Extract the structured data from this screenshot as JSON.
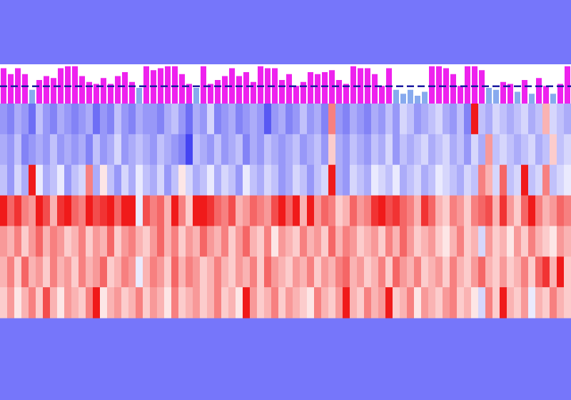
{
  "chart_data": {
    "type": "heatmap",
    "background": "#7676fa",
    "bar_color": "#ee22ee",
    "bar_low_color": "#88aaee",
    "threshold": 0.44,
    "threshold_color": "#1a1aa0",
    "ylim": [
      0,
      1
    ],
    "bars": [
      0.9,
      0.75,
      0.9,
      0.75,
      0.35,
      0.6,
      0.7,
      0.65,
      0.9,
      0.95,
      0.95,
      0.7,
      0.55,
      0.5,
      0.65,
      0.5,
      0.7,
      0.8,
      0.55,
      0.4,
      0.95,
      0.85,
      0.9,
      0.95,
      0.95,
      0.75,
      0.5,
      0.4,
      0.95,
      0.5,
      0.6,
      0.7,
      0.9,
      0.7,
      0.8,
      0.55,
      0.95,
      0.9,
      0.9,
      0.6,
      0.75,
      0.45,
      0.55,
      0.8,
      0.75,
      0.8,
      0.85,
      0.6,
      0.5,
      0.95,
      0.9,
      0.9,
      0.75,
      0.45,
      0.9,
      0.35,
      0.25,
      0.35,
      0.2,
      0.3,
      0.95,
      0.95,
      0.9,
      0.75,
      0.45,
      0.95,
      0.95,
      0.85,
      0.4,
      0.35,
      0.55,
      0.5,
      0.3,
      0.6,
      0.25,
      0.65,
      0.45,
      0.25,
      0.5,
      0.95
    ],
    "zlim": [
      -1,
      1
    ],
    "low_color": [
      48,
      48,
      240
    ],
    "mid_color": [
      255,
      255,
      255
    ],
    "high_color": [
      238,
      0,
      0
    ],
    "rows": [
      [
        -0.5,
        -0.6,
        -0.4,
        -0.5,
        -0.7,
        -0.3,
        -0.5,
        -0.6,
        -0.4,
        -0.5,
        -0.6,
        -0.5,
        -0.4,
        -0.7,
        -0.5,
        -0.6,
        -0.3,
        -0.5,
        -0.6,
        -0.4,
        -0.5,
        -0.5,
        -0.6,
        -0.4,
        -0.3,
        -0.5,
        -0.7,
        -0.4,
        -0.5,
        -0.2,
        -0.6,
        -0.5,
        -0.4,
        -0.6,
        -0.5,
        -0.4,
        -0.5,
        -0.8,
        -0.5,
        -0.4,
        -0.6,
        -0.5,
        -0.3,
        -0.5,
        -0.4,
        -0.6,
        0.5,
        -0.5,
        -0.6,
        -0.4,
        -0.5,
        -0.6,
        -0.4,
        -0.5,
        -0.3,
        -0.5,
        -0.2,
        -0.3,
        -0.5,
        -0.4,
        -0.3,
        -0.2,
        -0.4,
        -0.5,
        -0.3,
        -0.6,
        0.9,
        -0.3,
        -0.4,
        -0.2,
        -0.3,
        -0.4,
        -0.3,
        -0.2,
        -0.4,
        -0.3,
        0.3,
        -0.2,
        -0.3,
        -0.4
      ],
      [
        -0.4,
        -0.5,
        -0.3,
        -0.6,
        -0.5,
        -0.4,
        -0.5,
        -0.3,
        -0.5,
        -0.4,
        -0.5,
        -0.4,
        -0.6,
        -0.3,
        -0.5,
        -0.4,
        -0.2,
        -0.5,
        -0.4,
        -0.3,
        -0.4,
        -0.5,
        -0.3,
        -0.4,
        -0.5,
        -0.6,
        -0.9,
        -0.3,
        -0.4,
        -0.5,
        -0.3,
        -0.5,
        -0.4,
        -0.3,
        -0.6,
        -0.4,
        -0.5,
        -0.3,
        -0.4,
        -0.5,
        -0.4,
        -0.3,
        -0.5,
        -0.4,
        -0.3,
        -0.5,
        0.2,
        -0.4,
        -0.5,
        -0.3,
        -0.4,
        -0.5,
        -0.3,
        -0.4,
        -0.2,
        -0.5,
        -0.3,
        -0.4,
        -0.3,
        -0.2,
        -0.4,
        -0.3,
        -0.2,
        -0.4,
        -0.3,
        -0.5,
        -0.2,
        -0.4,
        0.4,
        -0.3,
        -0.2,
        -0.3,
        -0.4,
        -0.3,
        -0.2,
        -0.4,
        -0.3,
        0.2,
        -0.3,
        -0.2
      ],
      [
        -0.3,
        -0.5,
        -0.2,
        -0.4,
        0.9,
        -0.1,
        -0.4,
        -0.3,
        -0.1,
        -0.5,
        -0.3,
        -0.2,
        0.5,
        -0.4,
        0.1,
        -0.3,
        -0.5,
        -0.2,
        -0.4,
        -0.1,
        -0.3,
        -0.4,
        -0.2,
        -0.5,
        -0.3,
        0.1,
        -0.2,
        -0.4,
        -0.3,
        -0.1,
        -0.4,
        -0.2,
        -0.3,
        -0.5,
        -0.1,
        -0.3,
        -0.4,
        -0.2,
        -0.3,
        -0.5,
        -0.4,
        -0.2,
        -0.3,
        -0.5,
        -0.3,
        -0.2,
        0.9,
        -0.4,
        -0.5,
        -0.2,
        -0.3,
        -0.4,
        -0.1,
        -0.2,
        -0.3,
        -0.1,
        -0.4,
        -0.3,
        -0.2,
        -0.4,
        -0.3,
        -0.1,
        -0.2,
        -0.3,
        -0.4,
        -0.2,
        -0.3,
        0.5,
        0.3,
        -0.2,
        0.6,
        -0.3,
        -0.2,
        0.9,
        -0.3,
        -0.2,
        0.5,
        -0.3,
        -0.2,
        -0.1
      ],
      [
        0.9,
        0.6,
        0.8,
        0.5,
        0.4,
        0.9,
        0.7,
        0.3,
        0.8,
        0.9,
        0.6,
        0.5,
        0.9,
        0.7,
        0.8,
        0.9,
        0.6,
        0.9,
        0.9,
        -0.1,
        0.7,
        0.5,
        0.6,
        0.3,
        0.9,
        0.5,
        0.2,
        0.9,
        0.9,
        0.8,
        0.6,
        0.5,
        0.7,
        0.3,
        0.4,
        0.6,
        0.5,
        0.4,
        0.7,
        0.9,
        0.6,
        0.9,
        0.3,
        0.9,
        0.4,
        0.6,
        0.5,
        0.2,
        0.3,
        0.6,
        0.4,
        0.5,
        0.8,
        0.9,
        0.7,
        0.8,
        0.6,
        0.5,
        0.3,
        0.8,
        0.6,
        0.3,
        0.2,
        0.5,
        0.4,
        0.2,
        0.5,
        0.6,
        0.7,
        0.3,
        0.8,
        0.4,
        0.2,
        0.6,
        0.9,
        0.5,
        0.3,
        0.4,
        0.6,
        0.5
      ],
      [
        0.4,
        0.3,
        0.5,
        0.2,
        0.4,
        0.6,
        0.3,
        0.5,
        0.4,
        0.2,
        0.3,
        0.5,
        0.2,
        0.4,
        0.3,
        0.6,
        0.2,
        0.4,
        0.5,
        0.3,
        0.2,
        0.4,
        0.6,
        0.3,
        0.5,
        0.2,
        0.4,
        0.3,
        0.6,
        0.4,
        0.3,
        0.5,
        0.2,
        0.4,
        0.6,
        0.3,
        0.2,
        0.5,
        0.1,
        0.4,
        0.3,
        0.2,
        0.5,
        0.3,
        0.4,
        0.2,
        0.6,
        0.3,
        0.5,
        0.4,
        0.2,
        0.3,
        0.4,
        0.2,
        0.5,
        0.3,
        0.6,
        0.4,
        0.2,
        0.3,
        0.4,
        0.2,
        0.1,
        0.3,
        0.5,
        0.2,
        0.3,
        -0.2,
        0.4,
        0.2,
        0.3,
        0.1,
        0.4,
        0.2,
        0.5,
        0.3,
        0.2,
        0.1,
        0.4,
        0.3
      ],
      [
        0.3,
        0.5,
        0.2,
        0.6,
        0.3,
        0.4,
        0.2,
        0.5,
        0.3,
        0.4,
        0.2,
        0.5,
        0.3,
        0.4,
        0.6,
        0.2,
        0.3,
        0.5,
        0.4,
        -0.1,
        0.3,
        0.5,
        0.4,
        0.2,
        0.6,
        0.3,
        0.5,
        0.4,
        0.2,
        0.3,
        0.5,
        0.3,
        0.2,
        0.4,
        0.3,
        0.5,
        0.2,
        0.6,
        0.4,
        0.3,
        0.2,
        0.4,
        0.3,
        0.5,
        0.2,
        0.4,
        0.3,
        0.5,
        0.6,
        0.3,
        0.4,
        0.2,
        0.3,
        0.5,
        0.2,
        0.6,
        0.4,
        0.3,
        0.5,
        0.2,
        0.3,
        0.4,
        0.2,
        0.5,
        0.3,
        0.2,
        0.4,
        0.6,
        0.3,
        0.2,
        0.4,
        0.2,
        0.3,
        0.5,
        0.2,
        0.6,
        0.8,
        0.3,
        0.9,
        0.2
      ],
      [
        0.2,
        0.4,
        0.1,
        0.3,
        0.5,
        0.2,
        0.7,
        0.3,
        0.1,
        0.4,
        0.3,
        0.2,
        0.5,
        0.9,
        0.1,
        0.3,
        0.4,
        0.2,
        0.3,
        0.5,
        0.2,
        0.4,
        0.3,
        0.1,
        0.5,
        0.2,
        0.3,
        0.4,
        0.2,
        0.3,
        0.5,
        0.2,
        0.3,
        0.1,
        0.9,
        0.4,
        0.2,
        0.3,
        0.5,
        0.2,
        0.4,
        0.3,
        0.2,
        0.1,
        0.5,
        0.3,
        0.2,
        0.4,
        0.9,
        0.3,
        0.2,
        0.5,
        0.3,
        0.4,
        0.9,
        0.2,
        0.3,
        0.5,
        0.1,
        0.4,
        0.3,
        0.2,
        0.4,
        0.5,
        0.2,
        0.3,
        0.1,
        -0.2,
        0.5,
        0.2,
        0.9,
        0.3,
        0.2,
        0.4,
        -0.1,
        0.3,
        0.2,
        0.5,
        0.3,
        0.2
      ]
    ]
  }
}
